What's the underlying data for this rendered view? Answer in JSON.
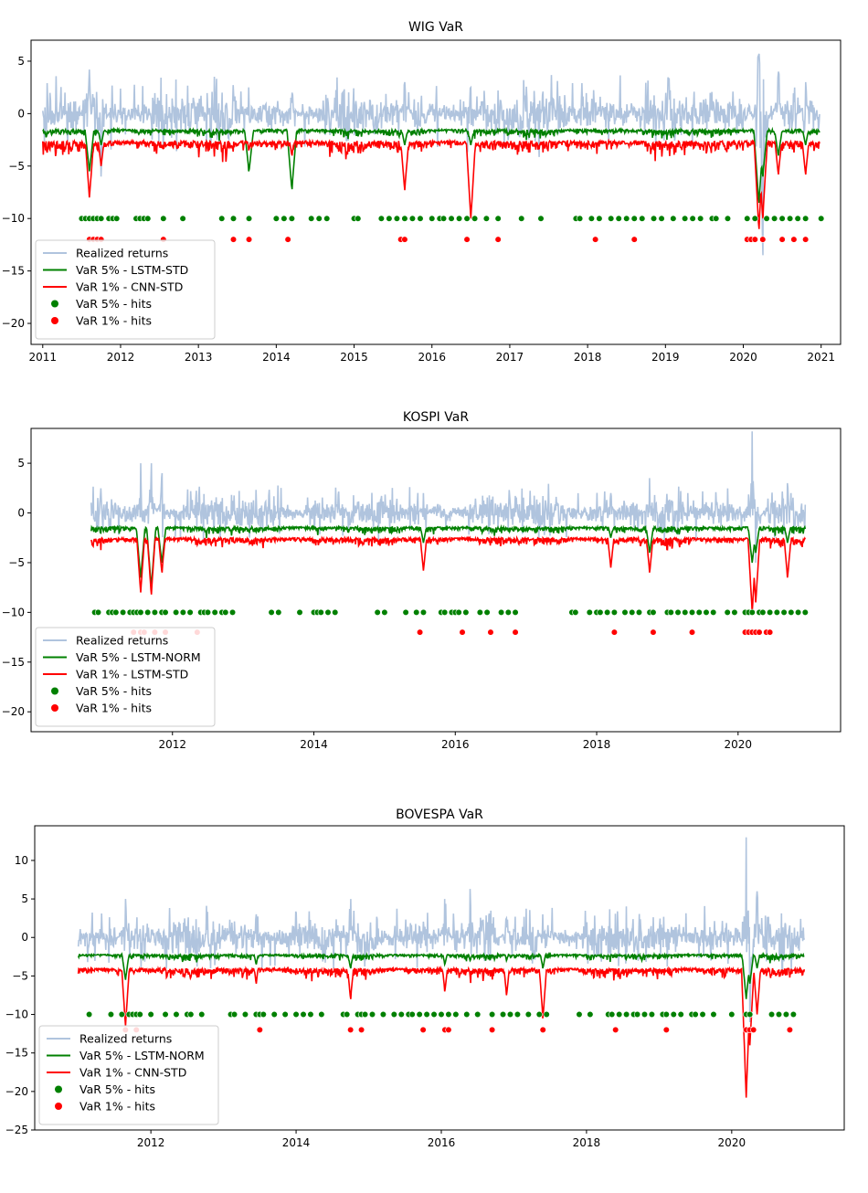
{
  "chart_data": [
    {
      "type": "line",
      "title": "WIG VaR",
      "xlabel": "",
      "ylabel": "",
      "x_range": [
        2010.85,
        2021.25
      ],
      "ylim": [
        -22,
        7
      ],
      "x_ticks": [
        2011,
        2012,
        2013,
        2014,
        2015,
        2016,
        2017,
        2018,
        2019,
        2020,
        2021
      ],
      "y_ticks": [
        5,
        0,
        -5,
        -10,
        -15,
        -20
      ],
      "start": 2011.0,
      "end": 2020.98,
      "series_profile": {
        "ret_amp": 1.6,
        "var5_base": -1.5,
        "var1_base": -2.6,
        "var1_noise": 0.9,
        "spikes": [
          {
            "x": 2011.6,
            "ret": 4.2,
            "var5": -5.5,
            "var1": -8.0
          },
          {
            "x": 2011.75,
            "ret": -6.0,
            "var5": -3.0,
            "var1": -5.0
          },
          {
            "x": 2013.65,
            "ret": 2.5,
            "var5": -5.5,
            "var1": -3.5
          },
          {
            "x": 2014.2,
            "ret": 2.0,
            "var5": -7.2,
            "var1": -4.0
          },
          {
            "x": 2015.65,
            "ret": 3.0,
            "var5": -3.0,
            "var1": -7.3
          },
          {
            "x": 2016.5,
            "ret": 2.5,
            "var5": -3.0,
            "var1": -10.0
          },
          {
            "x": 2020.2,
            "ret": 5.7,
            "var5": -8.5,
            "var1": -11.0
          },
          {
            "x": 2020.25,
            "ret": -13.5,
            "var5": -6.0,
            "var1": -10.0
          },
          {
            "x": 2020.45,
            "ret": 4.0,
            "var5": -4.0,
            "var1": -5.8
          },
          {
            "x": 2020.8,
            "ret": 3.0,
            "var5": -3.0,
            "var1": -5.8
          }
        ]
      },
      "hits_5pct": {
        "y": -10,
        "x": [
          2011.5,
          2011.55,
          2011.6,
          2011.65,
          2011.7,
          2011.75,
          2011.85,
          2011.9,
          2011.95,
          2012.2,
          2012.25,
          2012.3,
          2012.35,
          2012.55,
          2012.8,
          2013.3,
          2013.45,
          2013.65,
          2014.0,
          2014.1,
          2014.2,
          2014.45,
          2014.55,
          2014.65,
          2015.0,
          2015.05,
          2015.35,
          2015.45,
          2015.55,
          2015.65,
          2015.75,
          2015.85,
          2016.0,
          2016.1,
          2016.15,
          2016.25,
          2016.35,
          2016.45,
          2016.55,
          2016.7,
          2016.85,
          2017.15,
          2017.4,
          2017.85,
          2017.9,
          2018.05,
          2018.15,
          2018.3,
          2018.4,
          2018.5,
          2018.6,
          2018.7,
          2018.85,
          2018.95,
          2019.1,
          2019.25,
          2019.35,
          2019.45,
          2019.6,
          2019.65,
          2019.8,
          2020.05,
          2020.15,
          2020.3,
          2020.4,
          2020.5,
          2020.6,
          2020.7,
          2020.8,
          2021.0
        ]
      },
      "hits_1pct": {
        "y": -12,
        "x": [
          2011.6,
          2011.65,
          2011.7,
          2011.75,
          2012.55,
          2013.45,
          2013.65,
          2014.15,
          2015.6,
          2015.65,
          2016.45,
          2016.85,
          2018.1,
          2018.6,
          2020.05,
          2020.1,
          2020.15,
          2020.25,
          2020.5,
          2020.65,
          2020.8
        ]
      },
      "legend": [
        "Realized returns",
        "VaR 5% - LSTM-STD",
        "VaR 1% - CNN-STD",
        "VaR 5% - hits",
        "VaR 1% - hits"
      ],
      "legend_position": "lower-left"
    },
    {
      "type": "line",
      "title": "KOSPI VaR",
      "xlabel": "",
      "ylabel": "",
      "x_range": [
        2010.0,
        2021.45
      ],
      "ylim": [
        -22,
        8.5
      ],
      "x_ticks": [
        2012,
        2014,
        2016,
        2018,
        2020
      ],
      "y_ticks": [
        5,
        0,
        -5,
        -10,
        -15,
        -20
      ],
      "start": 2010.85,
      "end": 2020.95,
      "series_profile": {
        "ret_amp": 1.2,
        "var5_base": -1.4,
        "var1_base": -2.5,
        "var1_noise": 0.6,
        "spikes": [
          {
            "x": 2011.55,
            "ret": 5.0,
            "var5": -6.5,
            "var1": -8.0
          },
          {
            "x": 2011.7,
            "ret": 5.0,
            "var5": -7.5,
            "var1": -8.2
          },
          {
            "x": 2011.85,
            "ret": 4.0,
            "var5": -5.0,
            "var1": -6.0
          },
          {
            "x": 2015.55,
            "ret": 2.0,
            "var5": -3.0,
            "var1": -5.8
          },
          {
            "x": 2018.2,
            "ret": 2.0,
            "var5": -2.5,
            "var1": -5.5
          },
          {
            "x": 2018.75,
            "ret": 3.5,
            "var5": -4.0,
            "var1": -6.0
          },
          {
            "x": 2020.2,
            "ret": 8.2,
            "var5": -5.0,
            "var1": -10.0
          },
          {
            "x": 2020.25,
            "ret": -5.0,
            "var5": -4.0,
            "var1": -9.0
          },
          {
            "x": 2020.7,
            "ret": 3.0,
            "var5": -3.0,
            "var1": -6.5
          }
        ]
      },
      "hits_5pct": {
        "y": -10,
        "x": [
          2010.9,
          2010.95,
          2011.1,
          2011.15,
          2011.2,
          2011.3,
          2011.4,
          2011.45,
          2011.5,
          2011.55,
          2011.65,
          2011.75,
          2011.85,
          2011.9,
          2012.05,
          2012.15,
          2012.25,
          2012.4,
          2012.45,
          2012.5,
          2012.6,
          2012.7,
          2012.75,
          2012.85,
          2013.4,
          2013.5,
          2013.8,
          2014.0,
          2014.05,
          2014.1,
          2014.2,
          2014.3,
          2014.9,
          2015.0,
          2015.3,
          2015.45,
          2015.55,
          2015.8,
          2015.85,
          2015.95,
          2016.0,
          2016.05,
          2016.15,
          2016.35,
          2016.45,
          2016.65,
          2016.75,
          2016.85,
          2017.65,
          2017.7,
          2017.9,
          2018.0,
          2018.05,
          2018.15,
          2018.25,
          2018.4,
          2018.5,
          2018.6,
          2018.75,
          2018.8,
          2019.0,
          2019.05,
          2019.15,
          2019.25,
          2019.35,
          2019.45,
          2019.55,
          2019.65,
          2019.85,
          2019.95,
          2020.1,
          2020.15,
          2020.2,
          2020.3,
          2020.35,
          2020.45,
          2020.55,
          2020.65,
          2020.75,
          2020.85,
          2020.95
        ]
      },
      "hits_1pct": {
        "y": -12,
        "x": [
          2011.45,
          2011.55,
          2011.6,
          2011.75,
          2011.9,
          2012.35,
          2015.5,
          2016.1,
          2016.5,
          2016.85,
          2018.25,
          2018.8,
          2019.35,
          2020.1,
          2020.15,
          2020.2,
          2020.25,
          2020.3,
          2020.4,
          2020.45
        ]
      },
      "legend": [
        "Realized returns",
        "VaR 5% - LSTM-NORM",
        "VaR 1% - LSTM-STD",
        "VaR 5% - hits",
        "VaR 1% - hits"
      ],
      "legend_position": "lower-left"
    },
    {
      "type": "line",
      "title": "BOVESPA VaR",
      "xlabel": "",
      "ylabel": "",
      "x_range": [
        2010.4,
        2021.55
      ],
      "ylim": [
        -25,
        14.5
      ],
      "x_ticks": [
        2012,
        2014,
        2016,
        2018,
        2020
      ],
      "y_ticks": [
        10,
        5,
        0,
        -5,
        -10,
        -15,
        -20,
        -25
      ],
      "start": 2011.0,
      "end": 2021.0,
      "series_profile": {
        "ret_amp": 1.8,
        "var5_base": -2.2,
        "var1_base": -4.0,
        "var1_noise": 0.9,
        "spikes": [
          {
            "x": 2011.65,
            "ret": 5.0,
            "var5": -5.5,
            "var1": -11.5
          },
          {
            "x": 2013.45,
            "ret": 3.0,
            "var5": -3.5,
            "var1": -6.0
          },
          {
            "x": 2014.75,
            "ret": 5.0,
            "var5": -4.0,
            "var1": -8.0
          },
          {
            "x": 2016.05,
            "ret": 5.0,
            "var5": -3.5,
            "var1": -7.0
          },
          {
            "x": 2016.4,
            "ret": 6.3,
            "var5": -3.0,
            "var1": -5.0
          },
          {
            "x": 2017.4,
            "ret": 3.0,
            "var5": -4.0,
            "var1": -10.5
          },
          {
            "x": 2016.9,
            "ret": 2.5,
            "var5": -3.0,
            "var1": -7.5
          },
          {
            "x": 2020.2,
            "ret": 13.0,
            "var5": -8.0,
            "var1": -20.8
          },
          {
            "x": 2020.25,
            "ret": -11.0,
            "var5": -6.0,
            "var1": -14.0
          },
          {
            "x": 2020.35,
            "ret": 6.0,
            "var5": -4.0,
            "var1": -10.0
          }
        ]
      },
      "hits_5pct": {
        "y": -10,
        "x": [
          2011.15,
          2011.45,
          2011.6,
          2011.7,
          2011.75,
          2011.8,
          2011.85,
          2012.0,
          2012.2,
          2012.35,
          2012.5,
          2012.55,
          2012.7,
          2013.1,
          2013.15,
          2013.3,
          2013.45,
          2013.5,
          2013.55,
          2013.7,
          2013.85,
          2014.0,
          2014.1,
          2014.2,
          2014.35,
          2014.65,
          2014.7,
          2014.85,
          2014.9,
          2014.95,
          2015.05,
          2015.2,
          2015.35,
          2015.45,
          2015.55,
          2015.6,
          2015.7,
          2015.8,
          2015.9,
          2016.0,
          2016.1,
          2016.2,
          2016.35,
          2016.5,
          2016.7,
          2016.85,
          2016.95,
          2017.05,
          2017.2,
          2017.35,
          2017.45,
          2017.9,
          2018.05,
          2018.3,
          2018.35,
          2018.45,
          2018.55,
          2018.65,
          2018.7,
          2018.8,
          2018.9,
          2019.05,
          2019.1,
          2019.2,
          2019.3,
          2019.45,
          2019.5,
          2019.6,
          2019.75,
          2020.0,
          2020.2,
          2020.25,
          2020.55,
          2020.65,
          2020.75,
          2020.85
        ]
      },
      "hits_1pct": {
        "y": -12,
        "x": [
          2011.65,
          2011.8,
          2013.5,
          2014.75,
          2014.9,
          2015.75,
          2016.05,
          2016.1,
          2016.7,
          2017.4,
          2018.4,
          2019.1,
          2020.2,
          2020.25,
          2020.3,
          2020.8
        ]
      },
      "legend": [
        "Realized returns",
        "VaR 5% - LSTM-NORM",
        "VaR 1% - CNN-STD",
        "VaR 5% - hits",
        "VaR 1% - hits"
      ],
      "legend_position": "lower-left"
    }
  ],
  "colors": {
    "returns": "#b0c4de",
    "var5": "#008000",
    "var1": "#ff0000",
    "hits5": "#008000",
    "hits1": "#ff0000",
    "axes": "#000000"
  }
}
